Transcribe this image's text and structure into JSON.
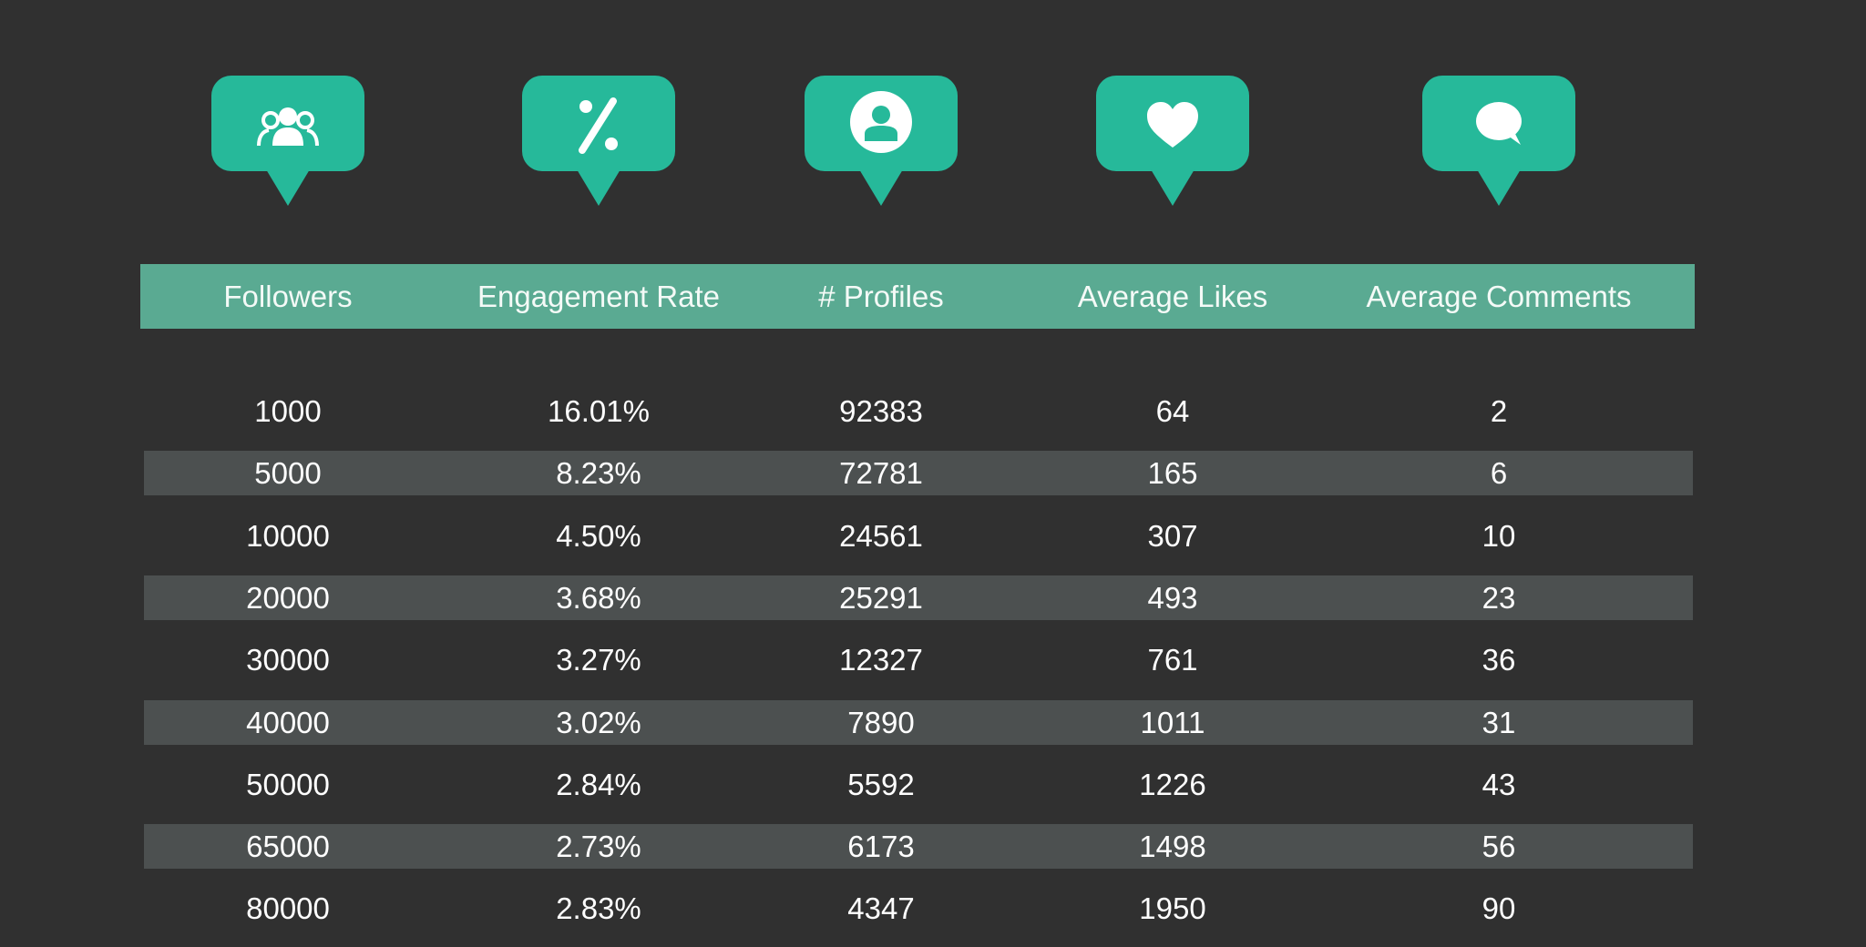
{
  "icons": [
    {
      "name": "followers-icon",
      "glyph": "users"
    },
    {
      "name": "engagement-rate-icon",
      "glyph": "percent"
    },
    {
      "name": "profiles-icon",
      "glyph": "user-circle"
    },
    {
      "name": "likes-icon",
      "glyph": "heart"
    },
    {
      "name": "comments-icon",
      "glyph": "chat-bubble"
    }
  ],
  "colors": {
    "background": "#303030",
    "accent": "#26b99a",
    "header": "#5aaa92",
    "stripe": "#4c5050"
  },
  "chart_data": {
    "type": "table",
    "columns": [
      "Followers",
      "Engagement Rate",
      "# Profiles",
      "Average Likes",
      "Average Comments"
    ],
    "rows": [
      [
        "1000",
        "16.01%",
        "92383",
        "64",
        "2"
      ],
      [
        "5000",
        "8.23%",
        "72781",
        "165",
        "6"
      ],
      [
        "10000",
        "4.50%",
        "24561",
        "307",
        "10"
      ],
      [
        "20000",
        "3.68%",
        "25291",
        "493",
        "23"
      ],
      [
        "30000",
        "3.27%",
        "12327",
        "761",
        "36"
      ],
      [
        "40000",
        "3.02%",
        "7890",
        "1011",
        "31"
      ],
      [
        "50000",
        "2.84%",
        "5592",
        "1226",
        "43"
      ],
      [
        "65000",
        "2.73%",
        "6173",
        "1498",
        "56"
      ],
      [
        "80000",
        "2.83%",
        "4347",
        "1950",
        "90"
      ]
    ]
  }
}
